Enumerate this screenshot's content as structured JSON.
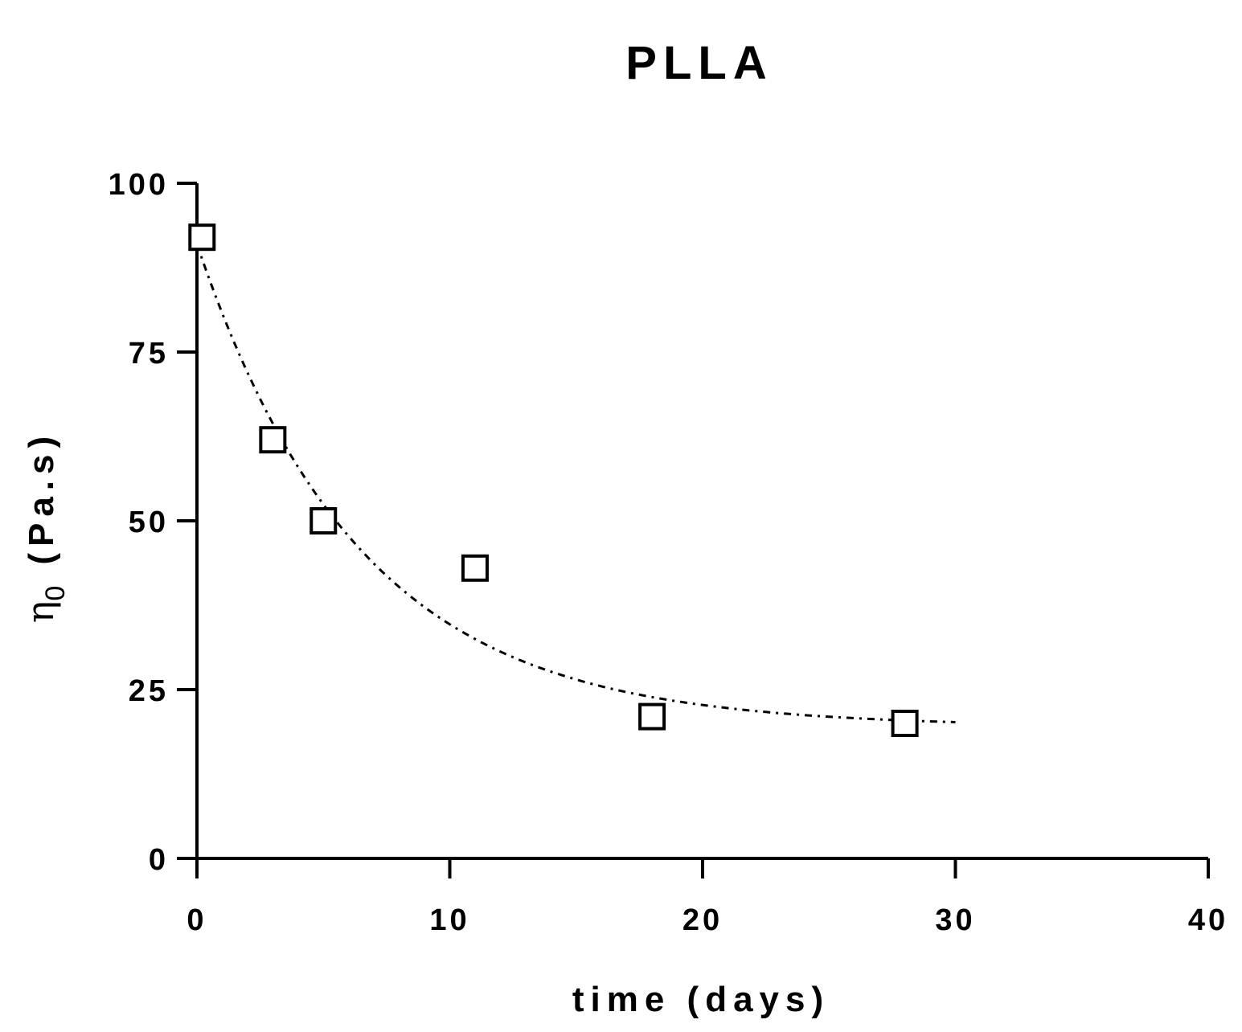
{
  "chart_data": {
    "type": "scatter",
    "title": "PLLA",
    "xlabel": "time (days)",
    "ylabel_symbol": "η",
    "ylabel_subscript": "0",
    "ylabel_units": "(Pa.s)",
    "xlim": [
      0,
      40
    ],
    "ylim": [
      0,
      100
    ],
    "xticks": [
      0,
      10,
      20,
      30,
      40
    ],
    "yticks": [
      0,
      25,
      50,
      75,
      100
    ],
    "grid": false,
    "series": [
      {
        "name": "PLLA",
        "marker": "open-square",
        "x": [
          0.2,
          3,
          5,
          11,
          18,
          28
        ],
        "y": [
          92,
          62,
          50,
          43,
          21,
          20
        ]
      }
    ],
    "fit": {
      "style": "dash-dot",
      "model": "exponential decay",
      "x_start": 0,
      "x_end": 30,
      "y0": 91,
      "plateau": 19.5,
      "k": 0.155
    }
  }
}
